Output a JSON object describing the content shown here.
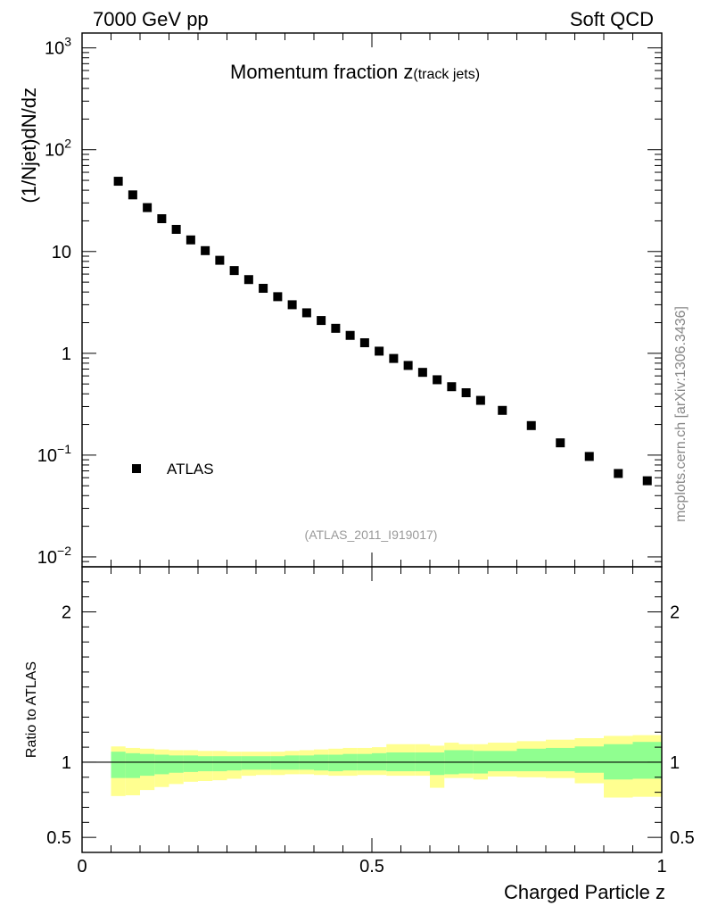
{
  "header": {
    "energy": "7000 GeV pp",
    "process": "Soft QCD"
  },
  "side_label": "mcplots.cern.ch [arXiv:1306.3436]",
  "chart_data": [
    {
      "type": "scatter",
      "title_main": "Momentum fraction ",
      "title_z": "z",
      "title_sub": "(track jets)",
      "ylabel": "(1/Njet)dN/dz",
      "xlabel": "",
      "yscale": "log",
      "ylim": [
        0.008,
        1400
      ],
      "xlim": [
        0,
        1
      ],
      "ytick_labels": [
        {
          "v": 0.01,
          "base": "10",
          "exp": "−2"
        },
        {
          "v": 0.1,
          "base": "10",
          "exp": "−1"
        },
        {
          "v": 1,
          "base": "1",
          "exp": ""
        },
        {
          "v": 10,
          "base": "10",
          "exp": ""
        },
        {
          "v": 100,
          "base": "10",
          "exp": "2"
        },
        {
          "v": 1000,
          "base": "10",
          "exp": "3"
        }
      ],
      "legend": {
        "label": "ATLAS",
        "position": "lower-left"
      },
      "analysis_id": "(ATLAS_2011_I919017)",
      "series": [
        {
          "name": "ATLAS",
          "color": "#000000",
          "x": [
            0.0625,
            0.0875,
            0.1125,
            0.1375,
            0.1625,
            0.1875,
            0.2125,
            0.2375,
            0.2625,
            0.2875,
            0.3125,
            0.3375,
            0.3625,
            0.3875,
            0.4125,
            0.4375,
            0.4625,
            0.4875,
            0.5125,
            0.5375,
            0.5625,
            0.5875,
            0.6125,
            0.6375,
            0.6625,
            0.6875,
            0.725,
            0.775,
            0.825,
            0.875,
            0.925,
            0.975
          ],
          "y": [
            49,
            36,
            27,
            21,
            16.5,
            13,
            10.2,
            8.2,
            6.5,
            5.3,
            4.35,
            3.6,
            3.0,
            2.5,
            2.1,
            1.76,
            1.5,
            1.27,
            1.05,
            0.89,
            0.76,
            0.65,
            0.55,
            0.47,
            0.41,
            0.345,
            0.275,
            0.195,
            0.132,
            0.097,
            0.066,
            0.056
          ]
        }
      ]
    },
    {
      "type": "area",
      "ylabel": "Ratio to ATLAS",
      "xlabel": "Charged Particle z",
      "ylim": [
        0.4,
        2.3
      ],
      "xlim": [
        0,
        1
      ],
      "ytick_labels": [
        {
          "v": 0.5,
          "t": "0.5"
        },
        {
          "v": 1,
          "t": "1"
        },
        {
          "v": 2,
          "t": "2"
        }
      ],
      "xtick_labels": [
        {
          "v": 0,
          "t": "0"
        },
        {
          "v": 0.5,
          "t": "0.5"
        },
        {
          "v": 1,
          "t": "1"
        }
      ],
      "reference_line": 1,
      "colors": {
        "stat": "#90ff90",
        "total": "#ffff90"
      },
      "bins": [
        {
          "lo": 0.05,
          "hi": 0.075,
          "stat": [
            0.895,
            1.07
          ],
          "tot": [
            0.775,
            1.105
          ]
        },
        {
          "lo": 0.075,
          "hi": 0.1,
          "stat": [
            0.895,
            1.06
          ],
          "tot": [
            0.78,
            1.095
          ]
        },
        {
          "lo": 0.1,
          "hi": 0.125,
          "stat": [
            0.91,
            1.055
          ],
          "tot": [
            0.815,
            1.09
          ]
        },
        {
          "lo": 0.125,
          "hi": 0.15,
          "stat": [
            0.92,
            1.05
          ],
          "tot": [
            0.835,
            1.085
          ]
        },
        {
          "lo": 0.15,
          "hi": 0.175,
          "stat": [
            0.93,
            1.045
          ],
          "tot": [
            0.855,
            1.08
          ]
        },
        {
          "lo": 0.175,
          "hi": 0.2,
          "stat": [
            0.935,
            1.045
          ],
          "tot": [
            0.87,
            1.08
          ]
        },
        {
          "lo": 0.2,
          "hi": 0.225,
          "stat": [
            0.94,
            1.04
          ],
          "tot": [
            0.875,
            1.075
          ]
        },
        {
          "lo": 0.225,
          "hi": 0.25,
          "stat": [
            0.94,
            1.04
          ],
          "tot": [
            0.88,
            1.075
          ]
        },
        {
          "lo": 0.25,
          "hi": 0.275,
          "stat": [
            0.945,
            1.04
          ],
          "tot": [
            0.89,
            1.07
          ]
        },
        {
          "lo": 0.275,
          "hi": 0.3,
          "stat": [
            0.95,
            1.04
          ],
          "tot": [
            0.91,
            1.07
          ]
        },
        {
          "lo": 0.3,
          "hi": 0.325,
          "stat": [
            0.95,
            1.04
          ],
          "tot": [
            0.915,
            1.07
          ]
        },
        {
          "lo": 0.325,
          "hi": 0.35,
          "stat": [
            0.95,
            1.04
          ],
          "tot": [
            0.915,
            1.07
          ]
        },
        {
          "lo": 0.35,
          "hi": 0.375,
          "stat": [
            0.95,
            1.045
          ],
          "tot": [
            0.92,
            1.075
          ]
        },
        {
          "lo": 0.375,
          "hi": 0.4,
          "stat": [
            0.95,
            1.045
          ],
          "tot": [
            0.92,
            1.08
          ]
        },
        {
          "lo": 0.4,
          "hi": 0.425,
          "stat": [
            0.945,
            1.05
          ],
          "tot": [
            0.915,
            1.085
          ]
        },
        {
          "lo": 0.425,
          "hi": 0.45,
          "stat": [
            0.94,
            1.05
          ],
          "tot": [
            0.91,
            1.09
          ]
        },
        {
          "lo": 0.45,
          "hi": 0.475,
          "stat": [
            0.945,
            1.055
          ],
          "tot": [
            0.91,
            1.095
          ]
        },
        {
          "lo": 0.475,
          "hi": 0.5,
          "stat": [
            0.945,
            1.055
          ],
          "tot": [
            0.915,
            1.095
          ]
        },
        {
          "lo": 0.5,
          "hi": 0.525,
          "stat": [
            0.945,
            1.06
          ],
          "tot": [
            0.915,
            1.1
          ]
        },
        {
          "lo": 0.525,
          "hi": 0.55,
          "stat": [
            0.94,
            1.065
          ],
          "tot": [
            0.91,
            1.12
          ]
        },
        {
          "lo": 0.55,
          "hi": 0.575,
          "stat": [
            0.94,
            1.065
          ],
          "tot": [
            0.91,
            1.12
          ]
        },
        {
          "lo": 0.575,
          "hi": 0.6,
          "stat": [
            0.94,
            1.065
          ],
          "tot": [
            0.91,
            1.12
          ]
        },
        {
          "lo": 0.6,
          "hi": 0.625,
          "stat": [
            0.915,
            1.065
          ],
          "tot": [
            0.83,
            1.11
          ]
        },
        {
          "lo": 0.625,
          "hi": 0.65,
          "stat": [
            0.92,
            1.08
          ],
          "tot": [
            0.895,
            1.13
          ]
        },
        {
          "lo": 0.65,
          "hi": 0.675,
          "stat": [
            0.925,
            1.08
          ],
          "tot": [
            0.895,
            1.12
          ]
        },
        {
          "lo": 0.675,
          "hi": 0.7,
          "stat": [
            0.925,
            1.075
          ],
          "tot": [
            0.885,
            1.12
          ]
        },
        {
          "lo": 0.7,
          "hi": 0.75,
          "stat": [
            0.94,
            1.075
          ],
          "tot": [
            0.905,
            1.13
          ]
        },
        {
          "lo": 0.75,
          "hi": 0.8,
          "stat": [
            0.94,
            1.09
          ],
          "tot": [
            0.9,
            1.14
          ]
        },
        {
          "lo": 0.8,
          "hi": 0.85,
          "stat": [
            0.94,
            1.095
          ],
          "tot": [
            0.895,
            1.15
          ]
        },
        {
          "lo": 0.85,
          "hi": 0.9,
          "stat": [
            0.93,
            1.105
          ],
          "tot": [
            0.86,
            1.16
          ]
        },
        {
          "lo": 0.9,
          "hi": 0.95,
          "stat": [
            0.885,
            1.12
          ],
          "tot": [
            0.765,
            1.175
          ]
        },
        {
          "lo": 0.95,
          "hi": 1.0,
          "stat": [
            0.89,
            1.135
          ],
          "tot": [
            0.77,
            1.18
          ]
        }
      ]
    }
  ]
}
